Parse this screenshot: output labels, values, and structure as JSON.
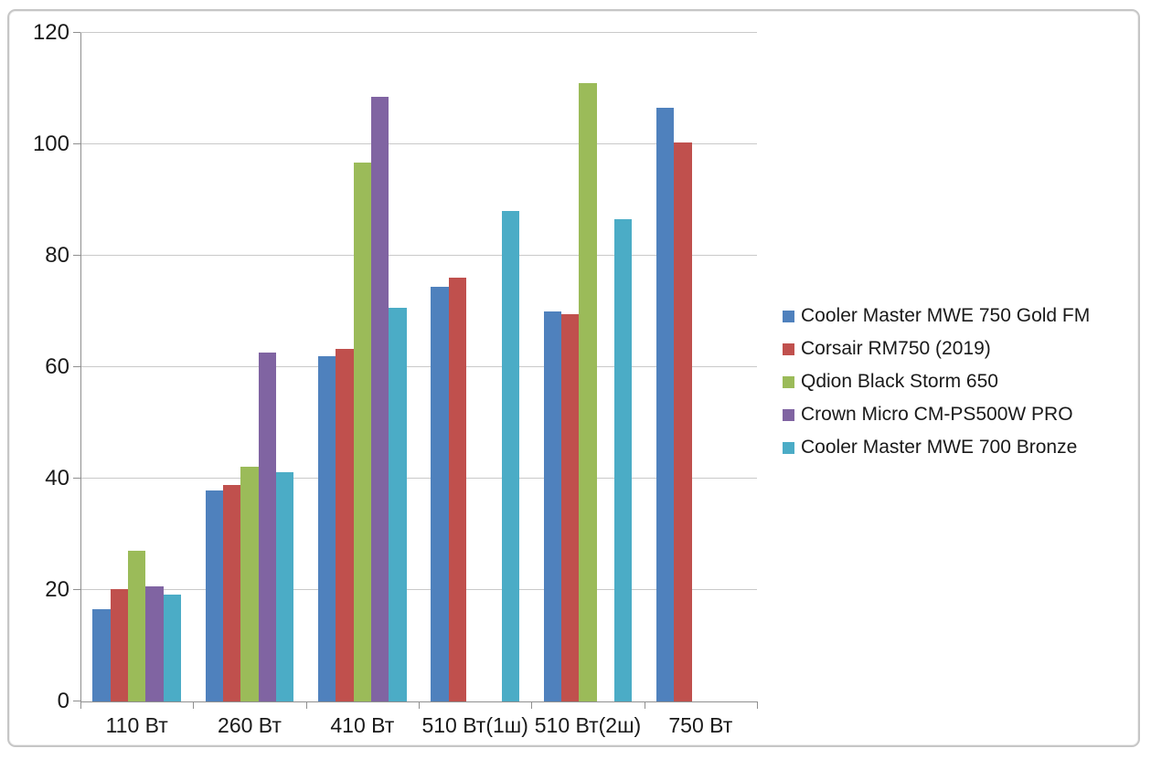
{
  "chart_data": {
    "type": "bar",
    "title": "",
    "xlabel": "",
    "ylabel": "",
    "categories": [
      "110 Вт",
      "260 Вт",
      "410 Вт",
      "510 Вт(1ш)",
      "510 Вт(2ш)",
      "750 Вт"
    ],
    "series": [
      {
        "name": "Cooler Master MWE 750 Gold FM",
        "color": "#4F81BD",
        "values": [
          16.5,
          37.8,
          61.9,
          74.5,
          70.0,
          106.5
        ]
      },
      {
        "name": "Corsair RM750 (2019)",
        "color": "#C0504D",
        "values": [
          20.1,
          38.8,
          63.3,
          76.0,
          69.5,
          100.3
        ]
      },
      {
        "name": "Qdion Black Storm 650",
        "color": "#9BBB59",
        "values": [
          27.1,
          42.1,
          96.8,
          null,
          111.0,
          null
        ]
      },
      {
        "name": "Crown Micro CM-PS500W PRO",
        "color": "#8064A2",
        "values": [
          20.7,
          62.6,
          108.5,
          null,
          null,
          null
        ]
      },
      {
        "name": "Cooler Master MWE 700 Bronze",
        "color": "#4BACC6",
        "values": [
          19.2,
          41.1,
          70.7,
          88.1,
          86.5,
          null
        ]
      }
    ],
    "ylim": [
      0,
      120
    ],
    "ytick_step": 20,
    "ytick_labels": [
      "0",
      "20",
      "40",
      "60",
      "80",
      "100",
      "120"
    ],
    "grid": true,
    "legend_position": "right",
    "colors": {
      "gridline": "#c9c9c9",
      "axis": "#8f8f8f",
      "frame_border": "#c6c6c6",
      "text": "#1a1a1a",
      "background": "#ffffff"
    }
  }
}
